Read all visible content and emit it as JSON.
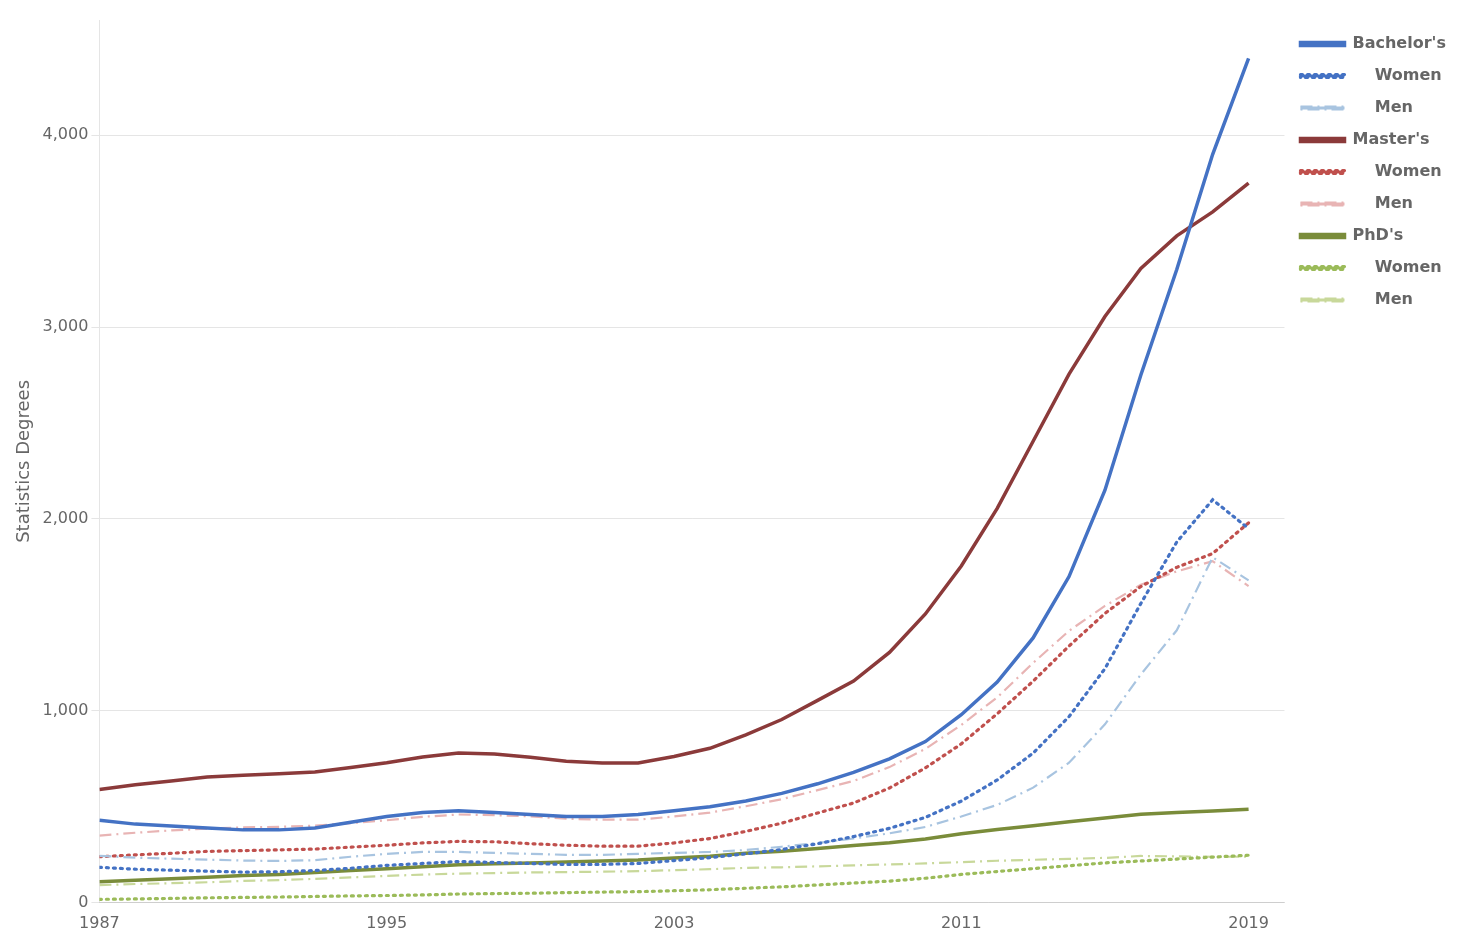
{
  "chart_data": {
    "type": "line",
    "ylabel": "Statistics Degrees",
    "x": [
      1987,
      1988,
      1989,
      1990,
      1991,
      1992,
      1993,
      1994,
      1995,
      1996,
      1997,
      1998,
      1999,
      2000,
      2001,
      2002,
      2003,
      2004,
      2005,
      2006,
      2007,
      2008,
      2009,
      2010,
      2011,
      2012,
      2013,
      2014,
      2015,
      2016,
      2017,
      2018,
      2019
    ],
    "series": [
      {
        "name": "Bachelor's",
        "color": "#4472C4",
        "line_style": "solid",
        "values": [
          430,
          410,
          400,
          390,
          380,
          380,
          390,
          420,
          450,
          470,
          480,
          470,
          460,
          450,
          450,
          460,
          480,
          500,
          530,
          570,
          620,
          680,
          750,
          840,
          980,
          1150,
          1380,
          1700,
          2150,
          2750,
          3300,
          3900,
          4400
        ]
      },
      {
        "name": "    Women",
        "color": "#4472C4",
        "line_style": "dotted",
        "values": [
          185,
          175,
          170,
          165,
          160,
          162,
          168,
          180,
          195,
          205,
          215,
          210,
          205,
          200,
          200,
          205,
          220,
          235,
          255,
          278,
          308,
          345,
          388,
          445,
          530,
          640,
          780,
          970,
          1220,
          1560,
          1880,
          2100,
          1950
        ]
      },
      {
        "name": "    Men",
        "color": "#A8C4E0",
        "line_style": "dashdot",
        "values": [
          245,
          235,
          230,
          225,
          220,
          218,
          222,
          240,
          255,
          265,
          265,
          260,
          255,
          250,
          250,
          255,
          260,
          265,
          275,
          292,
          312,
          335,
          362,
          395,
          450,
          510,
          600,
          730,
          930,
          1190,
          1420,
          1800,
          1680
        ]
      },
      {
        "name": "Master's",
        "color": "#8B3A3A",
        "line_style": "solid",
        "values": [
          590,
          615,
          635,
          655,
          665,
          672,
          682,
          705,
          730,
          760,
          780,
          775,
          758,
          738,
          728,
          728,
          762,
          805,
          875,
          955,
          1055,
          1155,
          1305,
          1505,
          1755,
          2055,
          2405,
          2755,
          3055,
          3305,
          3475,
          3600,
          3750
        ]
      },
      {
        "name": "    Women",
        "color": "#C0504D",
        "line_style": "dotted",
        "values": [
          240,
          250,
          258,
          268,
          272,
          276,
          280,
          290,
          300,
          312,
          320,
          318,
          308,
          300,
          295,
          295,
          312,
          335,
          372,
          415,
          468,
          520,
          598,
          703,
          828,
          985,
          1155,
          1338,
          1508,
          1648,
          1748,
          1820,
          1980
        ]
      },
      {
        "name": "    Men",
        "color": "#E8B4B4",
        "line_style": "dashdot",
        "values": [
          350,
          365,
          377,
          387,
          393,
          396,
          402,
          415,
          430,
          448,
          460,
          457,
          450,
          438,
          433,
          433,
          450,
          470,
          503,
          540,
          587,
          635,
          707,
          802,
          927,
          1070,
          1250,
          1417,
          1547,
          1657,
          1727,
          1780,
          1650
        ]
      },
      {
        "name": "PhD's",
        "color": "#7A8C3A",
        "line_style": "solid",
        "values": [
          110,
          118,
          125,
          133,
          142,
          148,
          158,
          168,
          178,
          188,
          198,
          203,
          208,
          213,
          218,
          223,
          233,
          243,
          258,
          268,
          283,
          298,
          313,
          333,
          360,
          382,
          402,
          422,
          442,
          462,
          470,
          478,
          488
        ]
      },
      {
        "name": "    Women",
        "color": "#9BBB59",
        "line_style": "dotted",
        "values": [
          18,
          20,
          23,
          26,
          28,
          30,
          33,
          36,
          38,
          41,
          46,
          48,
          50,
          53,
          56,
          58,
          63,
          68,
          76,
          83,
          93,
          103,
          113,
          128,
          148,
          163,
          178,
          193,
          208,
          218,
          228,
          238,
          248
        ]
      },
      {
        "name": "    Men",
        "color": "#C8D89A",
        "line_style": "dashdot",
        "values": [
          92,
          98,
          102,
          107,
          114,
          118,
          125,
          132,
          140,
          147,
          152,
          155,
          158,
          160,
          162,
          165,
          170,
          175,
          182,
          185,
          190,
          195,
          200,
          205,
          212,
          219,
          224,
          229,
          234,
          244,
          242,
          240,
          240
        ]
      }
    ],
    "xlim": [
      1987,
      2020
    ],
    "xticks": [
      1987,
      {
        "value": 1991,
        "label": ""
      },
      1995,
      {
        "value": 1999,
        "label": ""
      },
      2003,
      {
        "value": 2007,
        "label": ""
      },
      2011,
      {
        "value": 2015,
        "label": ""
      },
      2019
    ],
    "ylim": [
      0,
      4600
    ],
    "yticks": [
      0,
      {
        "value": 1000,
        "label": "1,000"
      },
      {
        "value": 2000,
        "label": "2,000"
      },
      {
        "value": 3000,
        "label": "3,000"
      },
      {
        "value": 4000,
        "label": "4,000"
      }
    ],
    "grid": "y",
    "legend": "right"
  }
}
